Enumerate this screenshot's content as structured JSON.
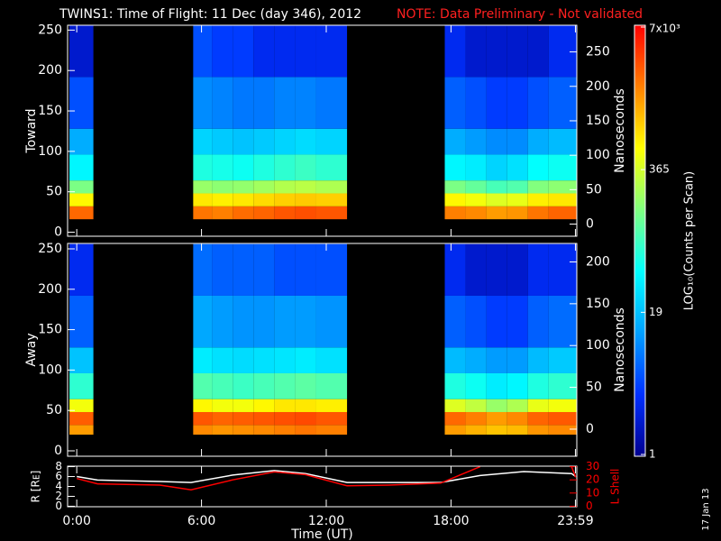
{
  "title": "TWINS1: Time of Flight: 11 Dec (day 346), 2012",
  "note": "NOTE: Data Preliminary - Not validated",
  "date_stamp": "17 Jan 13",
  "colorbar": {
    "label": "LOG₁₀(Counts per Scan)",
    "lim": [
      1,
      7000
    ],
    "log": true,
    "ticks": [
      1,
      19,
      365,
      {
        "value": 7000,
        "label": "7x10³"
      }
    ],
    "colormap": [
      "#000090",
      "#0030ff",
      "#00a0ff",
      "#00ffff",
      "#80ff80",
      "#ffff00",
      "#ff8000",
      "#ff0000"
    ]
  },
  "chart_data": [
    {
      "type": "heatmap",
      "ylabel": "Toward",
      "y2label": "Nanoseconds",
      "xlim": [
        -0.44,
        24.05
      ],
      "ylim": [
        -5,
        256
      ],
      "yticks": [
        0,
        50,
        100,
        150,
        200,
        250
      ],
      "y2lim": [
        -17.6,
        288.7
      ],
      "y2ticks": [
        0,
        50,
        100,
        150,
        200,
        250
      ],
      "x_bins": [
        -0.35,
        0.8,
        5.6,
        6.5,
        7.5,
        8.5,
        9.5,
        10.5,
        11.5,
        13.0,
        17.7,
        18.7,
        19.7,
        20.7,
        21.7,
        22.7,
        24.05
      ],
      "y_bins": [
        0,
        16,
        32,
        48,
        64,
        96,
        128,
        192,
        256
      ],
      "values": [
        [
          null,
          null,
          null,
          null,
          null,
          null,
          null,
          null,
          null,
          null,
          null,
          null,
          null,
          null,
          null,
          null
        ],
        [
          2500,
          null,
          2200,
          2000,
          2400,
          2600,
          3000,
          3200,
          3000,
          null,
          2000,
          1800,
          1500,
          1600,
          2200,
          2600
        ],
        [
          600,
          null,
          700,
          650,
          700,
          800,
          900,
          950,
          900,
          null,
          600,
          500,
          400,
          450,
          650,
          700
        ],
        [
          150,
          null,
          200,
          180,
          190,
          220,
          260,
          280,
          250,
          null,
          150,
          120,
          90,
          100,
          160,
          180
        ],
        [
          40,
          null,
          60,
          55,
          50,
          60,
          70,
          80,
          70,
          null,
          40,
          35,
          25,
          30,
          45,
          50
        ],
        [
          15,
          null,
          25,
          22,
          20,
          22,
          25,
          28,
          25,
          null,
          15,
          12,
          10,
          10,
          15,
          18
        ],
        [
          5,
          null,
          10,
          9,
          8,
          8,
          9,
          9,
          8,
          null,
          6,
          5,
          4,
          4,
          5,
          6
        ],
        [
          2,
          null,
          5,
          4,
          4,
          3,
          3,
          3,
          3,
          null,
          3,
          2,
          2,
          2,
          2,
          3
        ]
      ]
    },
    {
      "type": "heatmap",
      "ylabel": "Away",
      "y2label": "Nanoseconds",
      "xlim": [
        -0.44,
        24.05
      ],
      "ylim": [
        -6.7,
        256.7
      ],
      "yticks": [
        0,
        50,
        100,
        150,
        200,
        250
      ],
      "y2lim": [
        -32.4,
        222.1
      ],
      "y2ticks": [
        0,
        50,
        100,
        150,
        200
      ],
      "x_bins": [
        -0.35,
        0.8,
        5.6,
        6.5,
        7.5,
        8.5,
        9.5,
        10.5,
        11.5,
        13.0,
        17.7,
        18.7,
        19.7,
        20.7,
        21.7,
        22.7,
        24.05
      ],
      "y_bins": [
        0,
        20,
        32,
        48,
        64,
        96,
        128,
        192,
        256
      ],
      "values": [
        [
          null,
          null,
          null,
          null,
          null,
          null,
          null,
          null,
          null,
          null,
          null,
          null,
          null,
          null,
          null,
          null
        ],
        [
          1500,
          null,
          1800,
          1600,
          1700,
          1800,
          2000,
          2200,
          2000,
          null,
          1500,
          1200,
          1000,
          1100,
          1600,
          1800
        ],
        [
          2800,
          null,
          3000,
          2600,
          2800,
          3000,
          3200,
          3400,
          3000,
          null,
          2500,
          2000,
          1500,
          1800,
          2600,
          2900
        ],
        [
          500,
          null,
          600,
          500,
          500,
          600,
          700,
          700,
          650,
          null,
          400,
          300,
          200,
          250,
          450,
          500
        ],
        [
          70,
          null,
          100,
          90,
          80,
          90,
          100,
          110,
          100,
          null,
          60,
          50,
          35,
          40,
          60,
          70
        ],
        [
          20,
          null,
          35,
          30,
          28,
          30,
          32,
          35,
          30,
          null,
          18,
          15,
          12,
          12,
          18,
          22
        ],
        [
          6,
          null,
          14,
          12,
          11,
          11,
          12,
          12,
          11,
          null,
          6,
          5,
          4,
          4,
          6,
          7
        ],
        [
          3,
          null,
          7,
          6,
          6,
          6,
          5,
          5,
          5,
          null,
          3,
          2,
          2,
          2,
          3,
          3
        ]
      ]
    },
    {
      "type": "line",
      "ylabel": "R [Rᴇ]",
      "y2label": "L Shell",
      "xlabel": "Time (UT)",
      "xlim": [
        -0.44,
        24.05
      ],
      "xticks": [
        {
          "value": 0,
          "label": "0:00"
        },
        {
          "value": 6,
          "label": "6:00"
        },
        {
          "value": 12,
          "label": "12:00"
        },
        {
          "value": 18,
          "label": "18:00"
        },
        {
          "value": 23.983,
          "label": "23:59"
        }
      ],
      "ylim": [
        -0.1,
        8.1
      ],
      "yticks": [
        0,
        2,
        4,
        6,
        8
      ],
      "y2lim": [
        -0.4,
        30.4
      ],
      "y2ticks": [
        0,
        10,
        20,
        30
      ],
      "y2color": "#ff0000",
      "x": [
        0,
        1,
        4,
        5.5,
        7.5,
        9.5,
        11,
        13,
        15,
        17.5,
        19.4,
        21.5,
        23.8,
        24.0
      ],
      "series": [
        {
          "color": "#ffffff",
          "values": [
            6,
            5.3,
            5,
            4.8,
            6.3,
            7.2,
            6.6,
            4.8,
            4.8,
            4.8,
            6.2,
            7,
            6.6,
            6
          ]
        },
        {
          "color": "#ff0000",
          "axis": "y2",
          "values": [
            21,
            17,
            16,
            12.5,
            20,
            26,
            24,
            15.5,
            16,
            17.5,
            30,
            null,
            30,
            22
          ]
        }
      ]
    }
  ]
}
